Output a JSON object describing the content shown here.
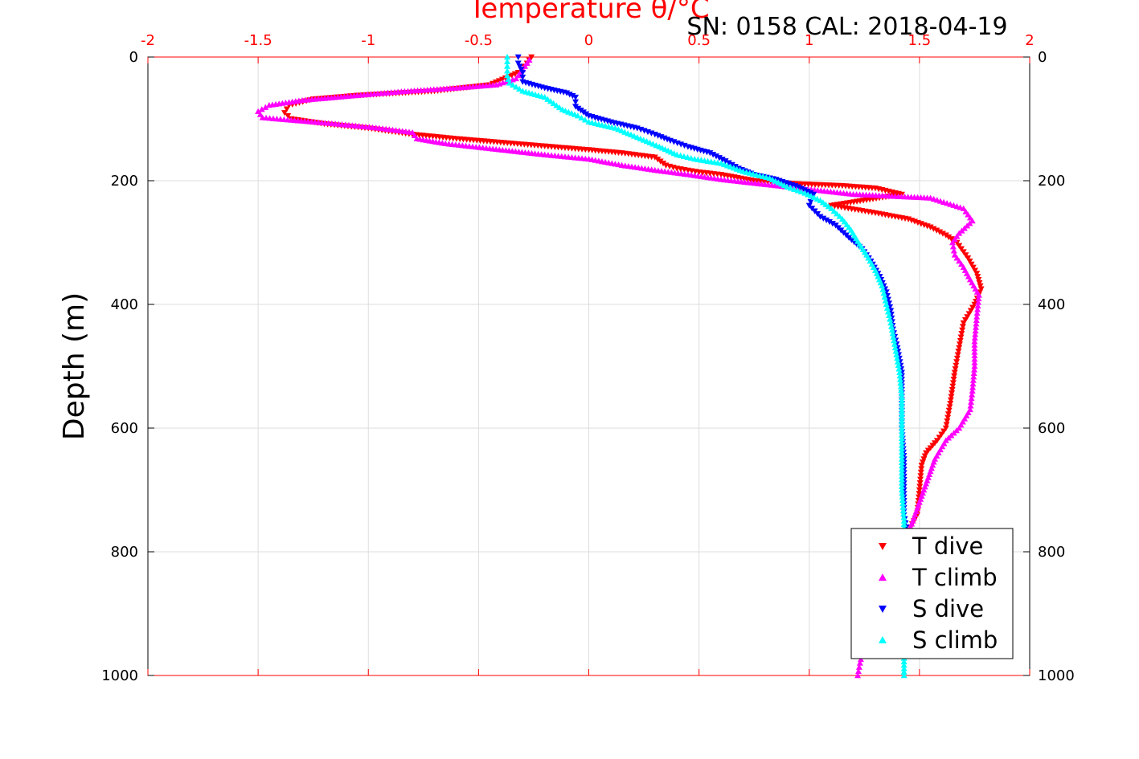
{
  "chart_data": {
    "type": "scatter",
    "title": "Temperature θ/°C",
    "annotation": "SN: 0158  CAL: 2018-04-19",
    "xlabel": "Temperature θ/°C",
    "ylabel": "Depth (m)",
    "xlim": [
      -2,
      2
    ],
    "ylim": [
      1000,
      0
    ],
    "y_reversed": true,
    "x_axis_position": "top",
    "x_ticks": [
      "-2",
      "-1.5",
      "-1",
      "-0.5",
      "0",
      "0.5",
      "1",
      "1.5",
      "2"
    ],
    "y_ticks": [
      "0",
      "200",
      "400",
      "600",
      "800",
      "1000"
    ],
    "grid": true,
    "legend_position": "bottom-right",
    "colors": {
      "axis_top": "#ff0000",
      "title": "#ff0000",
      "grid": "#dddddd",
      "frame": "#000000"
    },
    "series": [
      {
        "name": "T dive",
        "marker": "triangle-down",
        "color": "#ff0000",
        "points": [
          [
            -0.26,
            0
          ],
          [
            -0.28,
            10
          ],
          [
            -0.32,
            25
          ],
          [
            -0.45,
            45
          ],
          [
            -0.7,
            55
          ],
          [
            -1.05,
            62
          ],
          [
            -1.25,
            68
          ],
          [
            -1.36,
            78
          ],
          [
            -1.38,
            90
          ],
          [
            -1.35,
            100
          ],
          [
            -1.2,
            108
          ],
          [
            -1.0,
            115
          ],
          [
            -0.8,
            125
          ],
          [
            -0.6,
            132
          ],
          [
            -0.4,
            138
          ],
          [
            -0.2,
            144
          ],
          [
            0.0,
            150
          ],
          [
            0.15,
            155
          ],
          [
            0.3,
            162
          ],
          [
            0.35,
            175
          ],
          [
            0.4,
            180
          ],
          [
            0.5,
            186
          ],
          [
            0.6,
            190
          ],
          [
            0.75,
            200
          ],
          [
            0.95,
            205
          ],
          [
            1.15,
            208
          ],
          [
            1.3,
            212
          ],
          [
            1.42,
            222
          ],
          [
            1.1,
            240
          ],
          [
            1.3,
            252
          ],
          [
            1.45,
            262
          ],
          [
            1.55,
            275
          ],
          [
            1.62,
            288
          ],
          [
            1.67,
            300
          ],
          [
            1.72,
            325
          ],
          [
            1.76,
            350
          ],
          [
            1.78,
            375
          ],
          [
            1.75,
            400
          ],
          [
            1.7,
            430
          ],
          [
            1.68,
            470
          ],
          [
            1.66,
            510
          ],
          [
            1.64,
            560
          ],
          [
            1.62,
            600
          ],
          [
            1.58,
            620
          ],
          [
            1.53,
            640
          ],
          [
            1.51,
            660
          ],
          [
            1.5,
            700
          ],
          [
            1.49,
            740
          ],
          [
            1.46,
            760
          ],
          [
            1.44,
            780
          ],
          [
            1.43,
            800
          ]
        ]
      },
      {
        "name": "T climb",
        "marker": "triangle-up",
        "color": "#ff00ff",
        "points": [
          [
            1.22,
            1000
          ],
          [
            1.23,
            980
          ],
          [
            1.25,
            950
          ],
          [
            1.3,
            900
          ],
          [
            1.36,
            850
          ],
          [
            1.42,
            800
          ],
          [
            1.47,
            750
          ],
          [
            1.52,
            700
          ],
          [
            1.57,
            650
          ],
          [
            1.62,
            620
          ],
          [
            1.68,
            600
          ],
          [
            1.73,
            570
          ],
          [
            1.74,
            540
          ],
          [
            1.75,
            500
          ],
          [
            1.75,
            460
          ],
          [
            1.76,
            420
          ],
          [
            1.77,
            385
          ],
          [
            1.73,
            360
          ],
          [
            1.7,
            340
          ],
          [
            1.66,
            320
          ],
          [
            1.65,
            300
          ],
          [
            1.68,
            285
          ],
          [
            1.74,
            265
          ],
          [
            1.7,
            245
          ],
          [
            1.55,
            228
          ],
          [
            1.2,
            222
          ],
          [
            0.95,
            212
          ],
          [
            0.8,
            206
          ],
          [
            0.6,
            198
          ],
          [
            0.45,
            190
          ],
          [
            0.3,
            183
          ],
          [
            0.15,
            175
          ],
          [
            0.0,
            165
          ],
          [
            -0.2,
            158
          ],
          [
            -0.45,
            148
          ],
          [
            -0.65,
            140
          ],
          [
            -0.78,
            132
          ],
          [
            -0.8,
            122
          ],
          [
            -0.95,
            115
          ],
          [
            -1.15,
            108
          ],
          [
            -1.35,
            102
          ],
          [
            -1.48,
            98
          ],
          [
            -1.5,
            88
          ],
          [
            -1.45,
            78
          ],
          [
            -1.3,
            70
          ],
          [
            -1.05,
            62
          ],
          [
            -0.85,
            56
          ],
          [
            -0.6,
            50
          ],
          [
            -0.42,
            45
          ],
          [
            -0.33,
            35
          ],
          [
            -0.3,
            20
          ],
          [
            -0.27,
            5
          ]
        ]
      },
      {
        "name": "S dive",
        "marker": "triangle-down",
        "color": "#0000ff",
        "points": [
          [
            -0.32,
            0
          ],
          [
            -0.32,
            10
          ],
          [
            -0.3,
            25
          ],
          [
            -0.3,
            40
          ],
          [
            -0.2,
            50
          ],
          [
            -0.1,
            58
          ],
          [
            -0.06,
            65
          ],
          [
            -0.06,
            80
          ],
          [
            0.0,
            95
          ],
          [
            0.1,
            105
          ],
          [
            0.22,
            115
          ],
          [
            0.3,
            125
          ],
          [
            0.37,
            135
          ],
          [
            0.45,
            145
          ],
          [
            0.55,
            155
          ],
          [
            0.62,
            168
          ],
          [
            0.68,
            180
          ],
          [
            0.75,
            190
          ],
          [
            0.85,
            198
          ],
          [
            0.95,
            210
          ],
          [
            1.02,
            222
          ],
          [
            1.0,
            240
          ],
          [
            1.05,
            258
          ],
          [
            1.12,
            272
          ],
          [
            1.18,
            292
          ],
          [
            1.24,
            310
          ],
          [
            1.28,
            330
          ],
          [
            1.32,
            355
          ],
          [
            1.35,
            380
          ],
          [
            1.37,
            410
          ],
          [
            1.38,
            440
          ],
          [
            1.4,
            470
          ],
          [
            1.42,
            510
          ],
          [
            1.42,
            560
          ],
          [
            1.42,
            600
          ],
          [
            1.43,
            650
          ],
          [
            1.43,
            700
          ],
          [
            1.43,
            740
          ],
          [
            1.44,
            760
          ]
        ]
      },
      {
        "name": "S climb",
        "marker": "triangle-up",
        "color": "#00ffff",
        "points": [
          [
            1.43,
            1000
          ],
          [
            1.43,
            950
          ],
          [
            1.43,
            900
          ],
          [
            1.43,
            850
          ],
          [
            1.43,
            800
          ],
          [
            1.43,
            750
          ],
          [
            1.42,
            700
          ],
          [
            1.42,
            650
          ],
          [
            1.42,
            600
          ],
          [
            1.42,
            550
          ],
          [
            1.41,
            510
          ],
          [
            1.39,
            470
          ],
          [
            1.37,
            430
          ],
          [
            1.35,
            400
          ],
          [
            1.33,
            370
          ],
          [
            1.3,
            345
          ],
          [
            1.26,
            320
          ],
          [
            1.22,
            298
          ],
          [
            1.19,
            280
          ],
          [
            1.15,
            262
          ],
          [
            1.1,
            245
          ],
          [
            1.05,
            232
          ],
          [
            0.98,
            220
          ],
          [
            0.9,
            210
          ],
          [
            0.82,
            196
          ],
          [
            0.7,
            185
          ],
          [
            0.6,
            172
          ],
          [
            0.48,
            165
          ],
          [
            0.4,
            158
          ],
          [
            0.32,
            145
          ],
          [
            0.22,
            130
          ],
          [
            0.12,
            115
          ],
          [
            0.0,
            105
          ],
          [
            -0.05,
            95
          ],
          [
            -0.12,
            85
          ],
          [
            -0.2,
            65
          ],
          [
            -0.3,
            55
          ],
          [
            -0.36,
            42
          ],
          [
            -0.37,
            30
          ],
          [
            -0.37,
            15
          ],
          [
            -0.37,
            0
          ]
        ]
      }
    ]
  }
}
